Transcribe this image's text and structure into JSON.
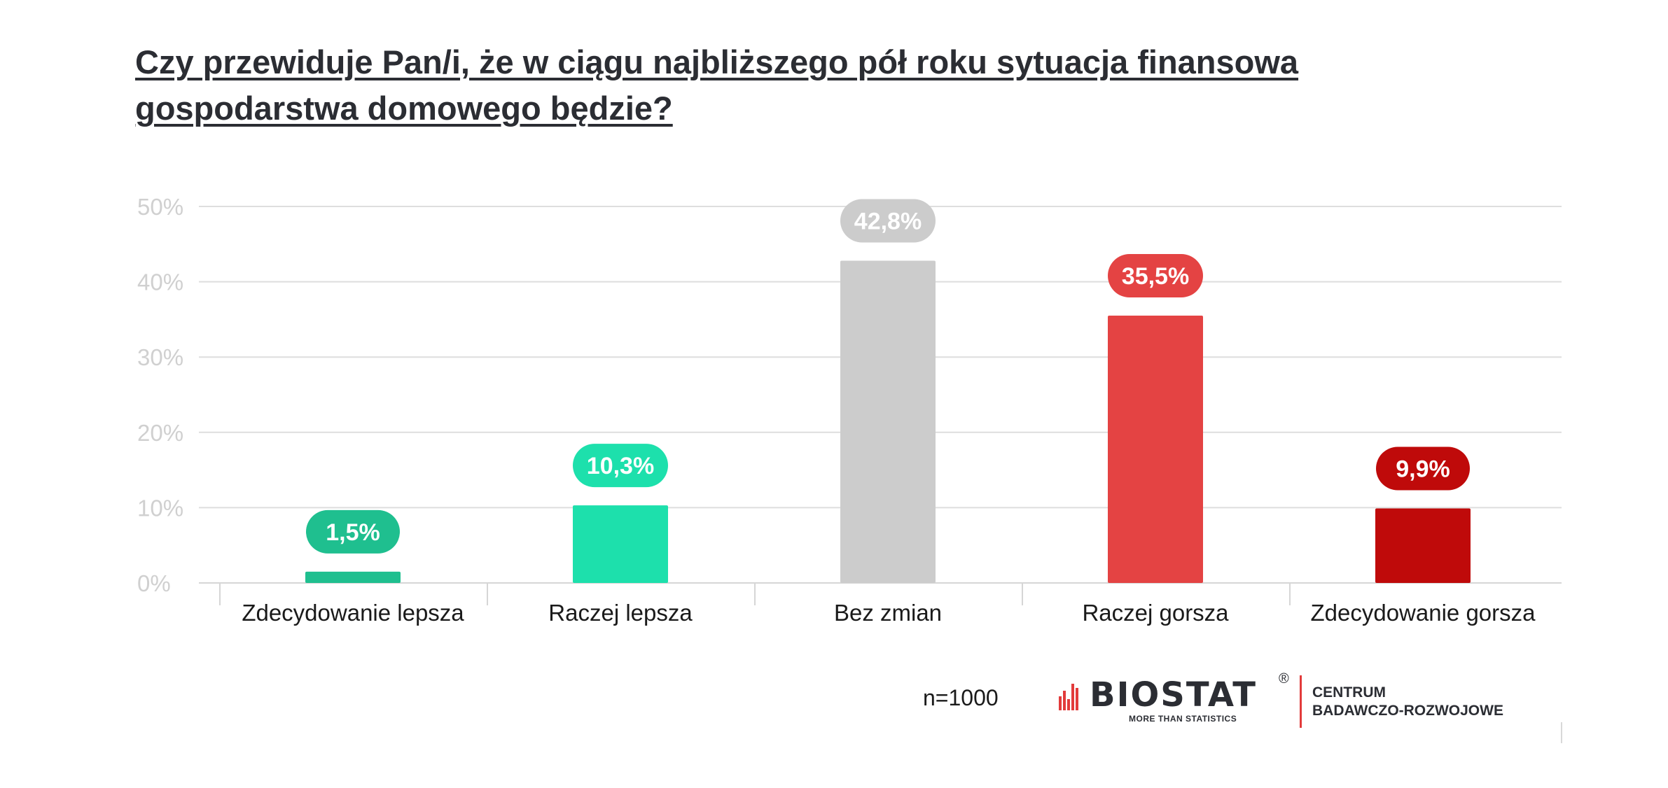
{
  "title_line1": "Czy przewiduje Pan/i, że w ciągu najbliższego pół roku sytuacja finansowa",
  "title_line2": "gospodarstwa domowego będzie?",
  "chart_data": {
    "type": "bar",
    "title": "Czy przewiduje Pan/i, że w ciągu najbliższego pół roku sytuacja finansowa gospodarstwa domowego będzie?",
    "categories": [
      "Zdecydowanie lepsza",
      "Raczej lepsza",
      "Bez zmian",
      "Raczej gorsza",
      "Zdecydowanie gorsza"
    ],
    "values": [
      1.5,
      10.3,
      42.8,
      35.5,
      9.9
    ],
    "value_labels": [
      "1,5%",
      "10,3%",
      "42,8%",
      "35,5%",
      "9,9%"
    ],
    "colors": [
      "#1fbf8f",
      "#1de0ac",
      "#cccccc",
      "#e44343",
      "#bf0a0a"
    ],
    "yticks": [
      0,
      10,
      20,
      30,
      40,
      50
    ],
    "ytick_labels": [
      "0%",
      "10%",
      "20%",
      "30%",
      "40%",
      "50%"
    ],
    "ylim": [
      0,
      50
    ],
    "xlabel": "",
    "ylabel": "",
    "grid": true,
    "legend": "none"
  },
  "footer": {
    "sample": "n=1000"
  },
  "logo": {
    "brand": "BIOSTAT",
    "reg": "®",
    "tagline": "MORE THAN STATISTICS",
    "centrum_line1": "CENTRUM",
    "centrum_line2": "BADAWCZO-ROZWOJOWE",
    "accent_color": "#e23b3b"
  }
}
